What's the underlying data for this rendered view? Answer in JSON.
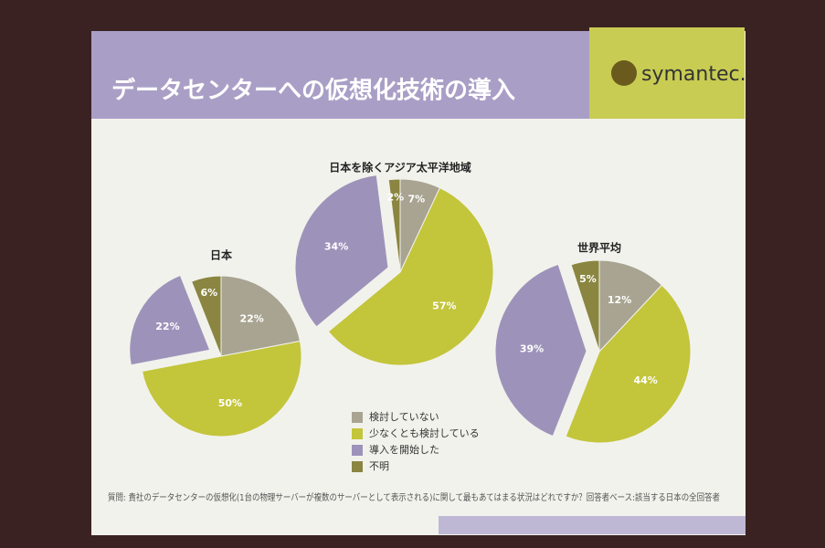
{
  "title": "データセンターへの仮想化技術の導入",
  "logo": "symantec.",
  "legend": {
    "categories": [
      "検討していない",
      "少なくとも検討している",
      "導入を開始した",
      "不明"
    ],
    "colors": [
      "#a8a491",
      "#c3c53b",
      "#9d93ba",
      "#8a8540"
    ]
  },
  "chart_data": [
    {
      "type": "pie",
      "title": "日本",
      "values": [
        22,
        50,
        22,
        6
      ],
      "value_labels": [
        "22%",
        "50%",
        "22%",
        "6%"
      ]
    },
    {
      "type": "pie",
      "title": "日本を除くアジア太平洋地域",
      "values": [
        7,
        57,
        34,
        2
      ],
      "value_labels": [
        "7%",
        "57%",
        "34%",
        "2%"
      ]
    },
    {
      "type": "pie",
      "title": "世界平均",
      "values": [
        12,
        44,
        39,
        5
      ],
      "value_labels": [
        "12%",
        "44%",
        "39%",
        "5%"
      ]
    }
  ],
  "footnote": "質問: 貴社のデータセンターの仮想化(1台の物理サーバーが複数のサーバーとして表示される)に関して最もあてはまる状況はどれですか？回答者ベース:該当する日本の全回答者"
}
